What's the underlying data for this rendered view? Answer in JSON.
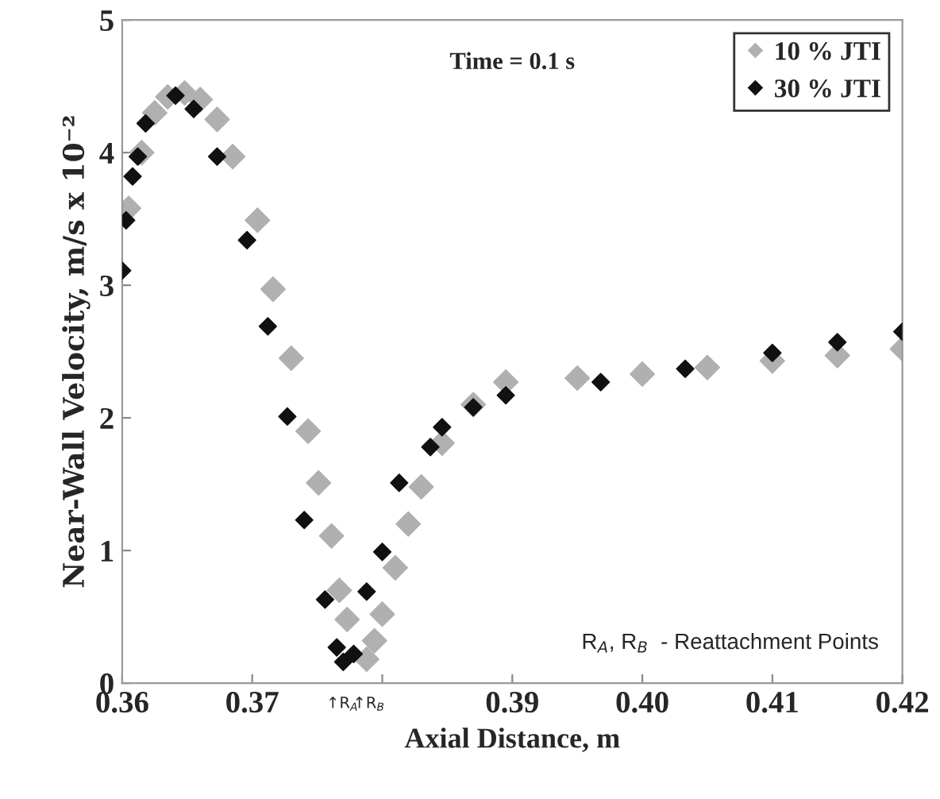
{
  "chart_data": {
    "type": "scatter",
    "xlabel": "Axial Distance, m",
    "ylabel": "Near-Wall Velocity, m/s x 10⁻²",
    "xlim": [
      0.36,
      0.42
    ],
    "ylim": [
      0,
      5
    ],
    "xticks": [
      0.36,
      0.37,
      {
        "value": 0.38,
        "label": null
      },
      0.39,
      {
        "value": 0.4,
        "label": "0.40"
      },
      0.41,
      0.42
    ],
    "yticks": [
      0,
      1,
      2,
      3,
      4,
      5
    ],
    "grid": false,
    "legend": "top right",
    "marker": "diamond",
    "series": [
      {
        "name": "10 % JTI",
        "color": "#b0b0b0",
        "x": [
          0.3605,
          0.3615,
          0.3625,
          0.3635,
          0.3648,
          0.366,
          0.3673,
          0.3685,
          0.3704,
          0.3716,
          0.373,
          0.3743,
          0.3751,
          0.3761,
          0.3767,
          0.3773,
          0.3788,
          0.3794,
          0.38,
          0.381,
          0.382,
          0.383,
          0.3846,
          0.387,
          0.3895,
          0.395,
          0.4,
          0.405,
          0.41,
          0.415,
          0.42
        ],
        "values": [
          3.58,
          4.0,
          4.3,
          4.42,
          4.45,
          4.4,
          4.25,
          3.97,
          3.49,
          2.97,
          2.45,
          1.9,
          1.51,
          1.11,
          0.7,
          0.48,
          0.18,
          0.32,
          0.52,
          0.87,
          1.2,
          1.48,
          1.81,
          2.1,
          2.27,
          2.3,
          2.33,
          2.38,
          2.43,
          2.47,
          2.52
        ]
      },
      {
        "name": "30 % JTI",
        "color": "#111111",
        "x": [
          0.36,
          0.3603,
          0.3608,
          0.3612,
          0.3618,
          0.3641,
          0.3655,
          0.3673,
          0.3696,
          0.3712,
          0.3727,
          0.374,
          0.3756,
          0.3765,
          0.377,
          0.3778,
          0.3788,
          0.38,
          0.3813,
          0.3837,
          0.3846,
          0.387,
          0.3895,
          0.3968,
          0.4033,
          0.41,
          0.415,
          0.42
        ],
        "values": [
          3.11,
          3.49,
          3.82,
          3.97,
          4.22,
          4.43,
          4.33,
          3.97,
          3.34,
          2.69,
          2.01,
          1.23,
          0.63,
          0.27,
          0.16,
          0.22,
          0.69,
          0.99,
          1.51,
          1.78,
          1.93,
          2.08,
          2.17,
          2.27,
          2.37,
          2.49,
          2.57,
          2.65
        ]
      }
    ],
    "annotations": [
      "Time = 0.1 s",
      "R$_{A}$, R$_{B}$  - Reattachment Points",
      "↑R$_{A}$",
      "↑R$_{B}$"
    ]
  }
}
